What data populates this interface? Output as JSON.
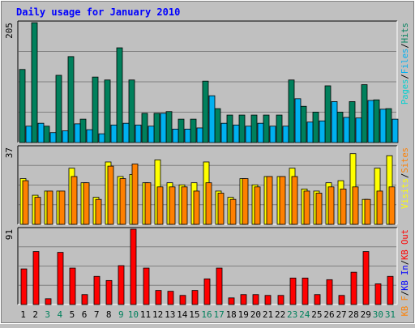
{
  "title": "Daily usage for January 2010",
  "colors": {
    "title": "#0000ff",
    "frame_bg": "#c0c0c0",
    "plot_bg": "#c0c0c0",
    "grid": "#808080",
    "hits": "#00805c",
    "files": "#00b0f0",
    "pages": "#00d0d0",
    "visits": "#ffff00",
    "sites": "#ff8000",
    "kbin": "#0000ff",
    "kbout": "#ff0000",
    "kbf": "#ff8000",
    "weekend_label": "#00805c",
    "weekday_label": "#000000"
  },
  "chart_data": [
    {
      "type": "bar",
      "title": "Daily usage for January 2010",
      "ymax_label": "205",
      "ylim": [
        0,
        205
      ],
      "legend": [
        {
          "name": "Pages",
          "color": "#00d0d0"
        },
        {
          "name": "Files",
          "color": "#00b0f0"
        },
        {
          "name": "Hits",
          "color": "#00805c"
        }
      ],
      "legend_separator": "/",
      "categories": [
        "1",
        "2",
        "3",
        "4",
        "5",
        "6",
        "7",
        "8",
        "9",
        "10",
        "11",
        "12",
        "13",
        "14",
        "15",
        "16",
        "17",
        "18",
        "19",
        "20",
        "21",
        "22",
        "23",
        "24",
        "25",
        "26",
        "27",
        "28",
        "29",
        "30",
        "31"
      ],
      "series": [
        {
          "name": "Hits",
          "values": [
            125,
            205,
            28,
            115,
            147,
            40,
            112,
            107,
            162,
            107,
            50,
            50,
            53,
            40,
            40,
            105,
            58,
            47,
            47,
            47,
            47,
            47,
            107,
            62,
            52,
            97,
            52,
            70,
            99,
            73,
            58
          ]
        },
        {
          "name": "Files",
          "values": [
            28,
            33,
            17,
            20,
            32,
            22,
            15,
            30,
            33,
            30,
            28,
            50,
            23,
            23,
            25,
            80,
            33,
            30,
            28,
            33,
            28,
            28,
            75,
            35,
            37,
            70,
            43,
            42,
            72,
            57,
            40
          ]
        }
      ]
    },
    {
      "type": "bar",
      "ymax_label": "37",
      "ylim": [
        0,
        37
      ],
      "legend": [
        {
          "name": "Visits",
          "color": "#ffff00"
        },
        {
          "name": "Sites",
          "color": "#ff8000"
        }
      ],
      "legend_separator": "/",
      "categories": [
        "1",
        "2",
        "3",
        "4",
        "5",
        "6",
        "7",
        "8",
        "9",
        "10",
        "11",
        "12",
        "13",
        "14",
        "15",
        "16",
        "17",
        "18",
        "19",
        "20",
        "21",
        "22",
        "23",
        "24",
        "25",
        "26",
        "27",
        "28",
        "29",
        "30",
        "31"
      ],
      "series": [
        {
          "name": "Visits",
          "values": [
            22,
            14,
            16,
            16,
            27,
            20,
            13,
            30,
            23,
            24,
            20,
            31,
            20,
            19,
            20,
            30,
            16,
            13,
            22,
            19,
            23,
            23,
            27,
            17,
            16,
            20,
            21,
            34,
            12,
            27,
            33
          ]
        },
        {
          "name": "Sites",
          "values": [
            21,
            13,
            16,
            16,
            23,
            20,
            12,
            28,
            22,
            29,
            20,
            18,
            18,
            18,
            16,
            20,
            15,
            12,
            22,
            18,
            23,
            23,
            23,
            16,
            15,
            18,
            17,
            18,
            12,
            16,
            18
          ]
        }
      ]
    },
    {
      "type": "bar",
      "ymax_label": "91",
      "ylim": [
        0,
        91
      ],
      "legend": [
        {
          "name": "KB F",
          "color": "#ff8000"
        },
        {
          "name": "KB In",
          "color": "#0000ff"
        },
        {
          "name": "KB Out",
          "color": "#ff0000"
        }
      ],
      "legend_separator": "/",
      "categories": [
        "1",
        "2",
        "3",
        "4",
        "5",
        "6",
        "7",
        "8",
        "9",
        "10",
        "11",
        "12",
        "13",
        "14",
        "15",
        "16",
        "17",
        "18",
        "19",
        "20",
        "21",
        "22",
        "23",
        "24",
        "25",
        "26",
        "27",
        "28",
        "29",
        "30",
        "31"
      ],
      "series": [
        {
          "name": "KB Out",
          "values": [
            43,
            64,
            7,
            63,
            44,
            12,
            34,
            29,
            47,
            91,
            44,
            17,
            16,
            11,
            17,
            31,
            44,
            8,
            12,
            12,
            11,
            11,
            32,
            32,
            12,
            30,
            11,
            39,
            64,
            25,
            34
          ]
        }
      ]
    }
  ],
  "day_labels": [
    {
      "text": "1",
      "weekend": false
    },
    {
      "text": "2",
      "weekend": false
    },
    {
      "text": "3",
      "weekend": true
    },
    {
      "text": "4",
      "weekend": true
    },
    {
      "text": "5",
      "weekend": false
    },
    {
      "text": "6",
      "weekend": false
    },
    {
      "text": "7",
      "weekend": false
    },
    {
      "text": "8",
      "weekend": false
    },
    {
      "text": "9",
      "weekend": true
    },
    {
      "text": "10",
      "weekend": true
    },
    {
      "text": "11",
      "weekend": false
    },
    {
      "text": "12",
      "weekend": false
    },
    {
      "text": "13",
      "weekend": false
    },
    {
      "text": "14",
      "weekend": false
    },
    {
      "text": "15",
      "weekend": false
    },
    {
      "text": "16",
      "weekend": true
    },
    {
      "text": "17",
      "weekend": true
    },
    {
      "text": "18",
      "weekend": false
    },
    {
      "text": "19",
      "weekend": false
    },
    {
      "text": "20",
      "weekend": false
    },
    {
      "text": "21",
      "weekend": false
    },
    {
      "text": "22",
      "weekend": false
    },
    {
      "text": "23",
      "weekend": true
    },
    {
      "text": "24",
      "weekend": true
    },
    {
      "text": "25",
      "weekend": false
    },
    {
      "text": "26",
      "weekend": false
    },
    {
      "text": "27",
      "weekend": false
    },
    {
      "text": "28",
      "weekend": false
    },
    {
      "text": "29",
      "weekend": false
    },
    {
      "text": "30",
      "weekend": true
    },
    {
      "text": "31",
      "weekend": true
    }
  ]
}
